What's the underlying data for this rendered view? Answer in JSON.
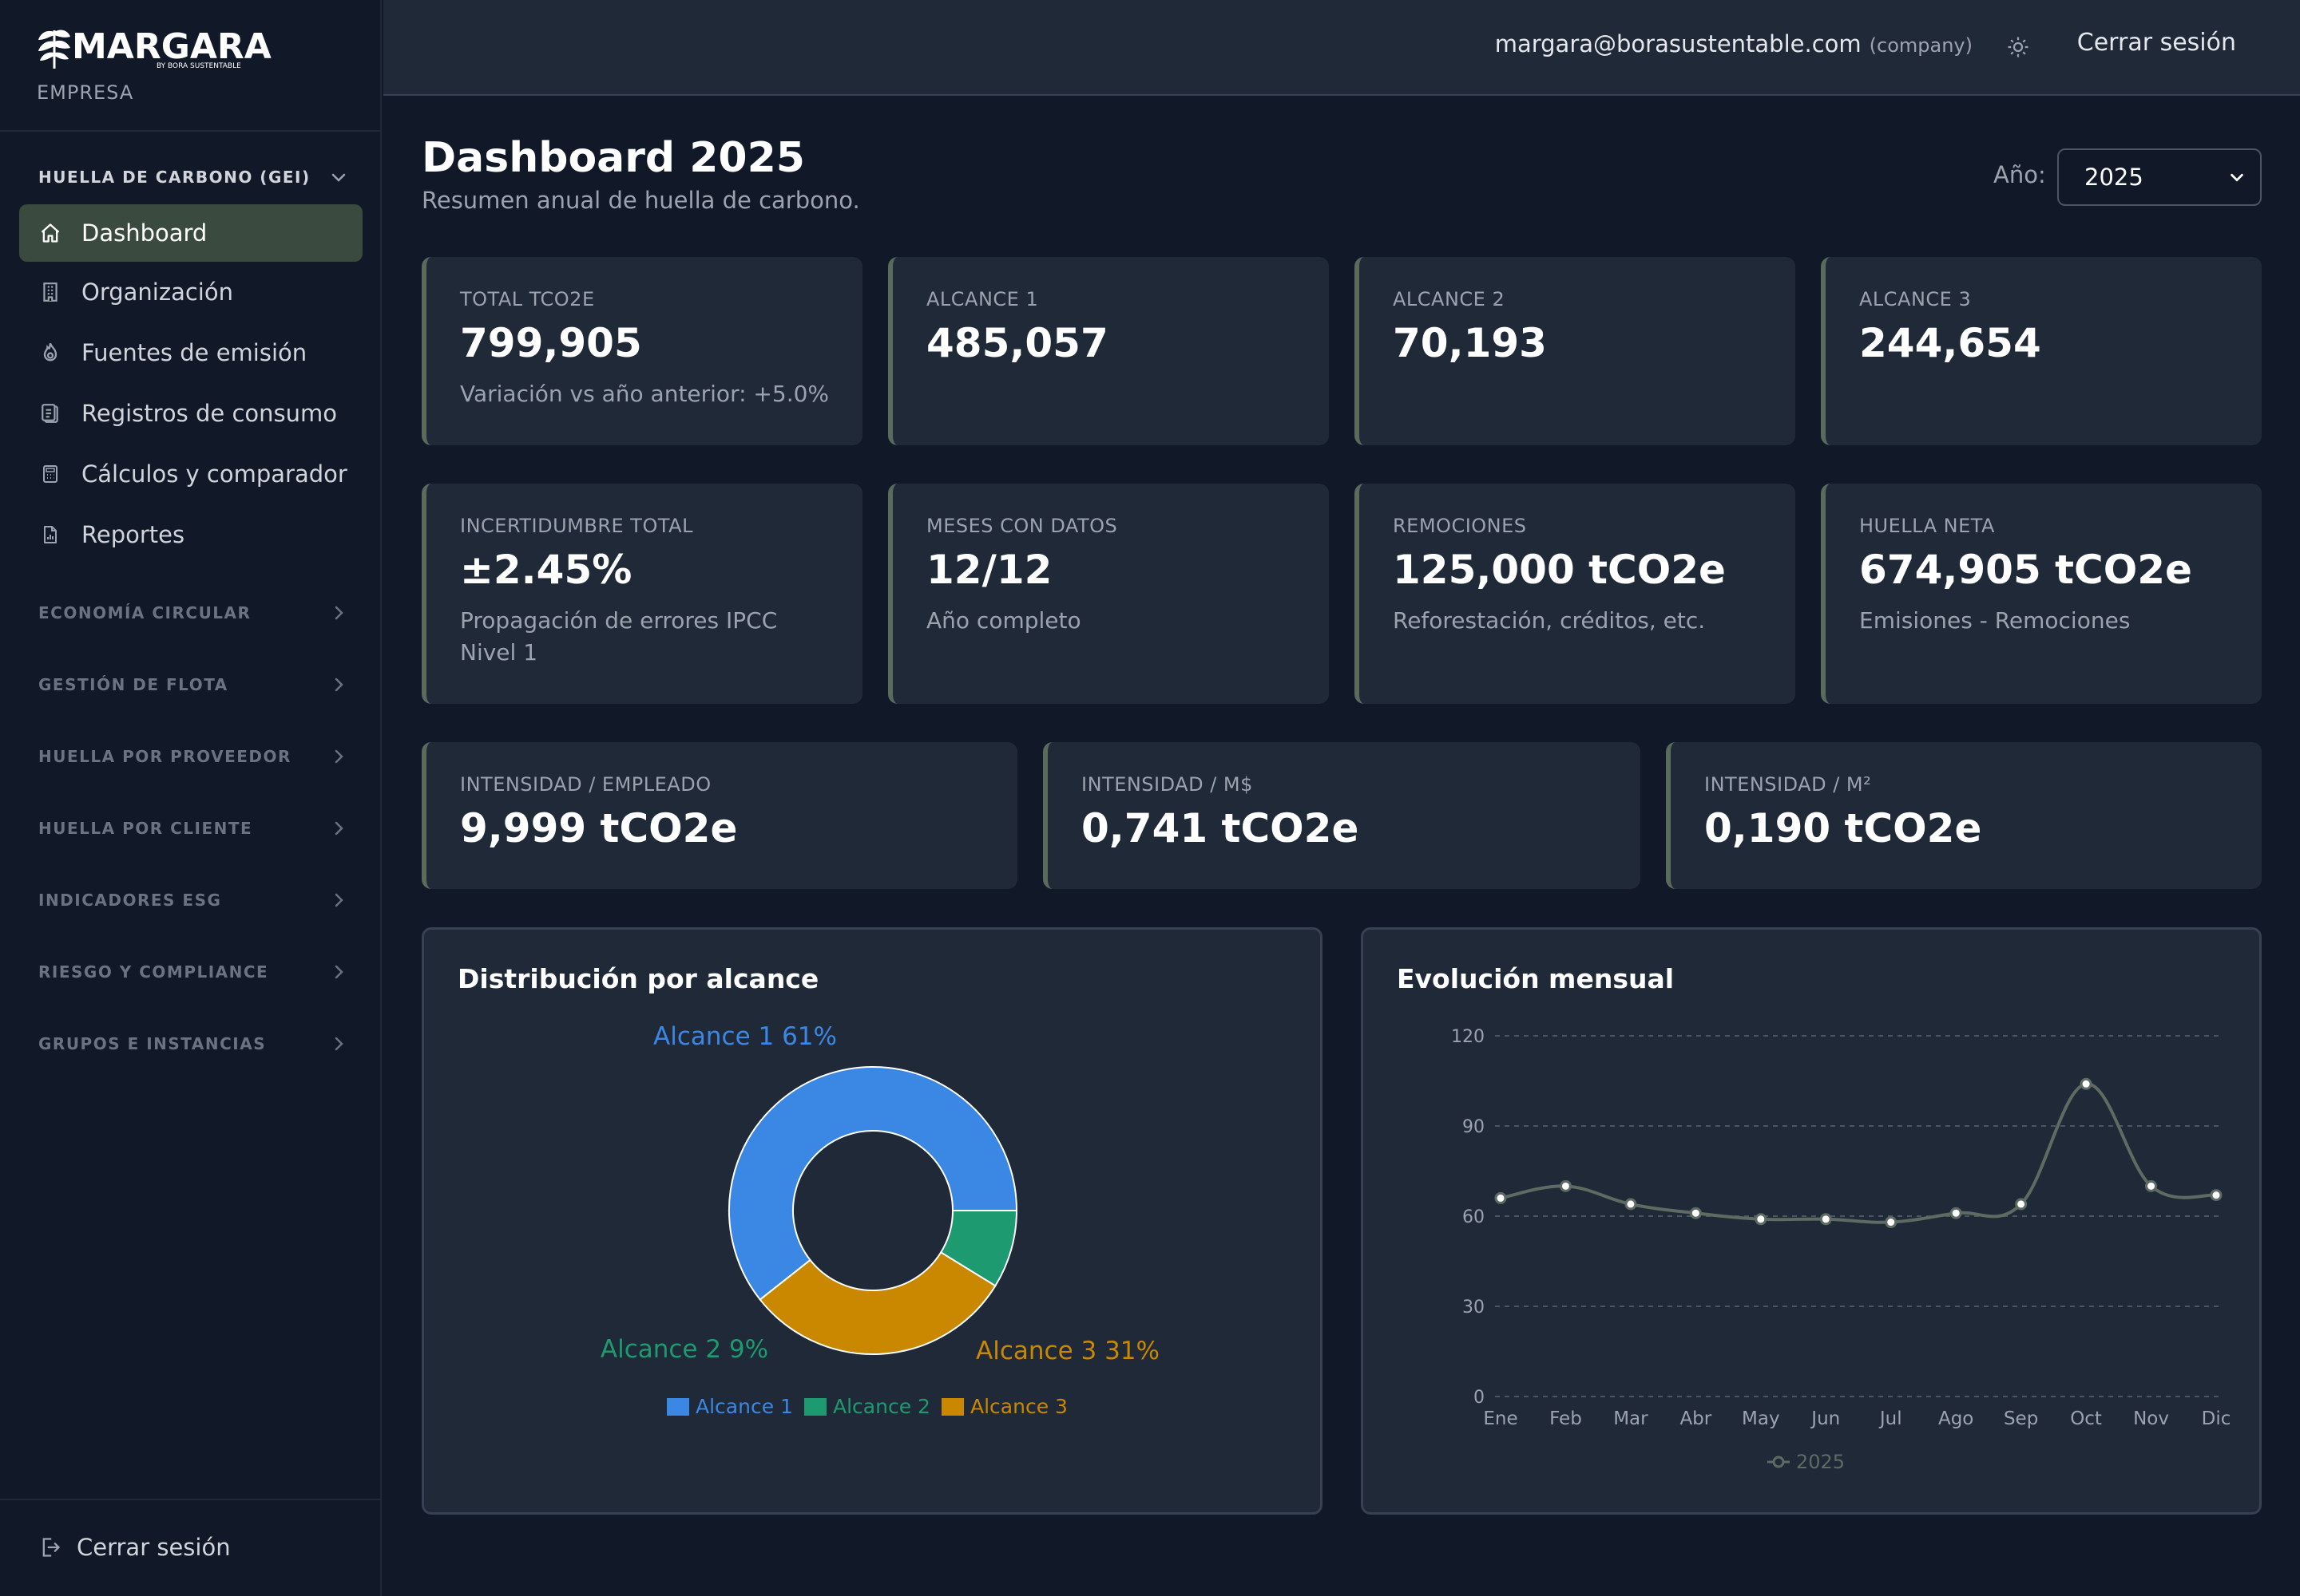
{
  "sidebar": {
    "brand": "MARGARA",
    "brand_sub": "BY BORA SUSTENTABLE",
    "brand_tag": "EMPRESA",
    "section_open": "HUELLA DE CARBONO (GEI)",
    "items": [
      {
        "label": "Dashboard",
        "icon": "home-icon",
        "active": true
      },
      {
        "label": "Organización",
        "icon": "building-icon"
      },
      {
        "label": "Fuentes de emisión",
        "icon": "flame-icon"
      },
      {
        "label": "Registros de consumo",
        "icon": "clipboard-icon"
      },
      {
        "label": "Cálculos y comparador",
        "icon": "calculator-icon"
      },
      {
        "label": "Reportes",
        "icon": "report-icon"
      }
    ],
    "sections": [
      "ECONOMÍA CIRCULAR",
      "GESTIÓN DE FLOTA",
      "HUELLA POR PROVEEDOR",
      "HUELLA POR CLIENTE",
      "INDICADORES ESG",
      "RIESGO Y COMPLIANCE",
      "GRUPOS E INSTANCIAS"
    ],
    "logout": "Cerrar sesión"
  },
  "topbar": {
    "email": "margara@borasustentable.com",
    "role": "(company)",
    "logout": "Cerrar sesión"
  },
  "header": {
    "title": "Dashboard 2025",
    "subtitle": "Resumen anual de huella de carbono.",
    "year_label": "Año:",
    "year_value": "2025"
  },
  "cards_row1": [
    {
      "label": "TOTAL TCO2E",
      "value": "799,905",
      "note": "Variación vs año anterior: +5.0%"
    },
    {
      "label": "ALCANCE 1",
      "value": "485,057",
      "note": ""
    },
    {
      "label": "ALCANCE 2",
      "value": "70,193",
      "note": ""
    },
    {
      "label": "ALCANCE 3",
      "value": "244,654",
      "note": ""
    }
  ],
  "cards_row2": [
    {
      "label": "INCERTIDUMBRE TOTAL",
      "value": "±2.45%",
      "note": "Propagación de errores IPCC Nivel 1"
    },
    {
      "label": "MESES CON DATOS",
      "value": "12/12",
      "note": "Año completo"
    },
    {
      "label": "REMOCIONES",
      "value": "125,000 tCO2e",
      "note": "Reforestación, créditos, etc."
    },
    {
      "label": "HUELLA NETA",
      "value": "674,905 tCO2e",
      "note": "Emisiones - Remociones"
    }
  ],
  "cards_row3": [
    {
      "label": "INTENSIDAD / EMPLEADO",
      "value": "9,999 tCO2e"
    },
    {
      "label": "INTENSIDAD / M$",
      "value": "0,741 tCO2e"
    },
    {
      "label": "INTENSIDAD / M²",
      "value": "0,190 tCO2e"
    }
  ],
  "colors": {
    "alcance1": "#3b87e4",
    "alcance2": "#1e9a70",
    "alcance3": "#c98800",
    "line": "#5d6b62",
    "card_accent": "#5a6b5e"
  },
  "chart_data": [
    {
      "type": "pie",
      "title": "Distribución por alcance",
      "categories": [
        "Alcance 1",
        "Alcance 2",
        "Alcance 3"
      ],
      "values": [
        485057,
        70193,
        244654
      ],
      "data_labels": [
        "Alcance 1 61%",
        "Alcance 2 9%",
        "Alcance 3 31%"
      ],
      "legend": "bottom"
    },
    {
      "type": "line",
      "title": "Evolución mensual",
      "x": [
        "Ene",
        "Feb",
        "Mar",
        "Abr",
        "May",
        "Jun",
        "Jul",
        "Ago",
        "Sep",
        "Oct",
        "Nov",
        "Dic"
      ],
      "series": [
        {
          "name": "2025",
          "values": [
            66,
            70,
            64,
            61,
            59,
            59,
            58,
            61,
            64,
            104,
            70,
            67
          ]
        }
      ],
      "ylim": [
        0,
        120
      ],
      "yticks": [
        0,
        30,
        60,
        90,
        120
      ],
      "grid": true,
      "legend": "bottom"
    }
  ]
}
